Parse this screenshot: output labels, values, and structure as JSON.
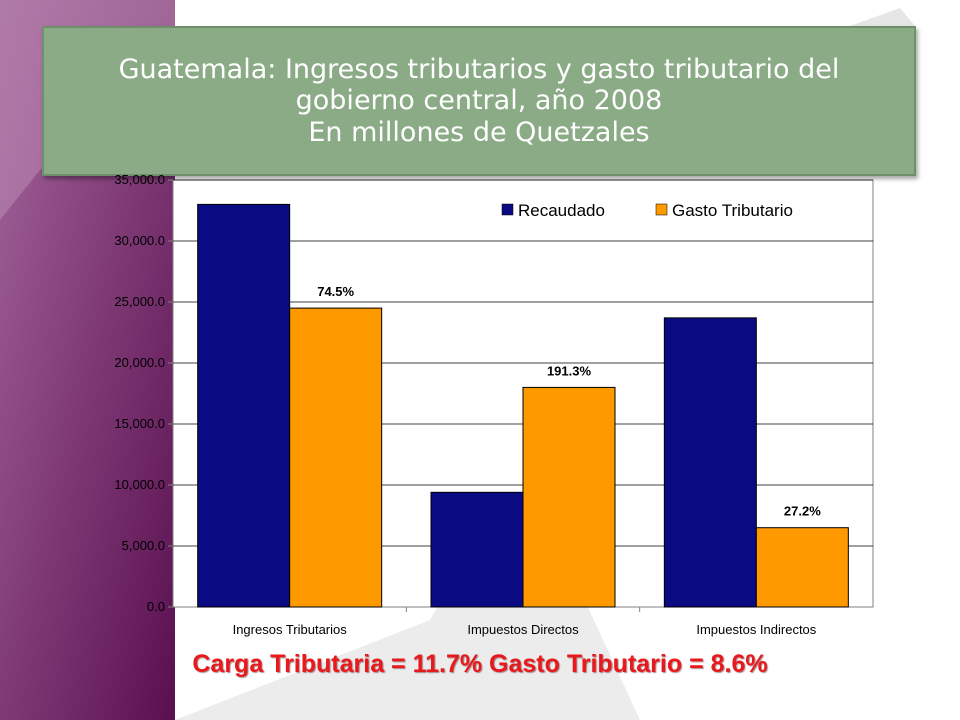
{
  "slide": {
    "title_line1": "Guatemala: Ingresos tributarios y gasto tributario del",
    "title_line2": "gobierno central, año 2008",
    "title_line3": "En millones de Quetzales",
    "footer": "Carga Tributaria = 11.7%  Gasto Tributario = 8.6%"
  },
  "colors": {
    "recaudado": "#0a0a82",
    "gasto": "#ff9900",
    "footer_text": "#e8191c",
    "title_bg": "#8aab86"
  },
  "chart_data": {
    "type": "bar",
    "categories": [
      "Ingresos Tributarios",
      "Impuestos Directos",
      "Impuestos Indirectos"
    ],
    "series": [
      {
        "name": "Recaudado",
        "values": [
          33000,
          9400,
          23700
        ]
      },
      {
        "name": "Gasto Tributario",
        "values": [
          24500,
          18000,
          6500
        ]
      }
    ],
    "data_labels": [
      "74.5%",
      "191.3%",
      "27.2%"
    ],
    "y_ticks": [
      "0.0",
      "5,000.0",
      "10,000.0",
      "15,000.0",
      "20,000.0",
      "25,000.0",
      "30,000.0",
      "35,000.0"
    ],
    "ylim": [
      0,
      35000
    ],
    "y_step": 5000,
    "grid": true,
    "legend_position": "top-right"
  }
}
